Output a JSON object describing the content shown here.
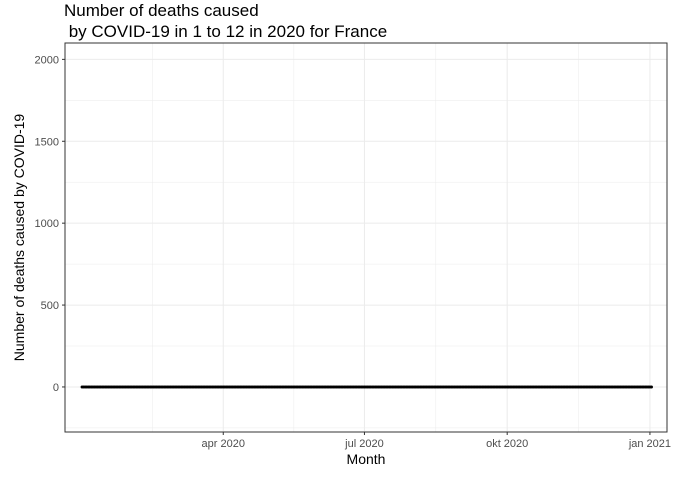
{
  "chart_data": {
    "type": "line",
    "title_lines": [
      "Number of deaths caused",
      " by COVID-19 in 1 to 12 in 2020 for France"
    ],
    "xlabel": "Month",
    "ylabel": "Number of deaths caused by COVID-19",
    "x_ticks": [
      {
        "date": "2020-04-01",
        "label": "apr 2020"
      },
      {
        "date": "2020-07-01",
        "label": "jul 2020"
      },
      {
        "date": "2020-10-01",
        "label": "okt 2020"
      },
      {
        "date": "2021-01-01",
        "label": "jan 2021"
      }
    ],
    "y_ticks": [
      0,
      500,
      1000,
      1500,
      2000
    ],
    "xlim": [
      "2019-12-21",
      "2021-01-12"
    ],
    "ylim": [
      -275,
      2100
    ],
    "grid": true,
    "colors": {
      "line": "#ff0000",
      "point": "#000000",
      "panel_border": "#333333",
      "grid": "#ebebeb"
    },
    "series": [
      {
        "x": [
          "2020-01-01",
          "2020-01-02",
          "2020-01-03",
          "2020-01-04",
          "2020-01-05",
          "2020-01-06",
          "2020-01-07",
          "2020-01-08",
          "2020-01-09",
          "2020-01-10",
          "2020-01-11",
          "2020-01-12",
          "2020-01-13",
          "2020-01-14",
          "2020-01-15",
          "2020-01-16",
          "2020-01-17",
          "2020-01-18",
          "2020-01-19",
          "2020-01-20",
          "2020-01-21",
          "2020-01-22",
          "2020-01-23",
          "2020-01-24",
          "2020-01-25",
          "2020-01-26",
          "2020-01-27",
          "2020-01-28",
          "2020-01-29",
          "2020-01-30",
          "2020-01-31",
          "2020-02-01",
          "2020-02-02",
          "2020-02-03",
          "2020-02-04",
          "2020-02-05",
          "2020-02-06",
          "2020-02-07",
          "2020-02-08",
          "2020-02-09",
          "2020-02-10",
          "2020-02-11",
          "2020-02-12",
          "2020-02-13",
          "2020-02-14",
          "2020-02-15",
          "2020-02-16",
          "2020-02-17",
          "2020-02-18",
          "2020-02-19",
          "2020-02-20",
          "2020-02-21",
          "2020-02-22",
          "2020-02-23",
          "2020-02-24",
          "2020-02-25",
          "2020-02-26",
          "2020-02-27",
          "2020-02-28",
          "2020-02-29",
          "2020-03-01",
          "2020-03-02",
          "2020-03-03",
          "2020-03-04",
          "2020-03-05",
          "2020-03-06",
          "2020-03-07",
          "2020-03-08",
          "2020-03-09",
          "2020-03-10",
          "2020-03-11",
          "2020-03-12",
          "2020-03-13",
          "2020-03-14",
          "2020-03-15",
          "2020-03-16",
          "2020-03-17",
          "2020-03-18",
          "2020-03-19",
          "2020-03-20",
          "2020-03-21",
          "2020-03-22",
          "2020-03-23",
          "2020-03-24",
          "2020-03-25",
          "2020-03-26",
          "2020-03-27",
          "2020-03-28",
          "2020-03-29",
          "2020-03-30",
          "2020-03-31",
          "2020-04-01",
          "2020-04-02",
          "2020-04-03",
          "2020-04-04",
          "2020-04-05",
          "2020-04-06",
          "2020-04-07",
          "2020-04-08",
          "2020-04-09",
          "2020-04-10",
          "2020-04-11",
          "2020-04-12",
          "2020-04-13",
          "2020-04-14",
          "2020-04-15",
          "2020-04-16",
          "2020-04-17",
          "2020-04-18",
          "2020-04-19",
          "2020-04-20",
          "2020-04-21",
          "2020-04-22",
          "2020-04-23",
          "2020-04-24",
          "2020-04-25",
          "2020-04-26",
          "2020-04-27",
          "2020-04-28",
          "2020-04-29",
          "2020-04-30",
          "2020-05-01",
          "2020-05-02",
          "2020-05-03",
          "2020-05-04",
          "2020-05-05",
          "2020-05-06",
          "2020-05-07",
          "2020-05-08",
          "2020-05-09",
          "2020-05-10",
          "2020-05-11",
          "2020-05-12",
          "2020-05-13",
          "2020-05-14",
          "2020-05-15",
          "2020-05-16",
          "2020-05-17",
          "2020-05-18",
          "2020-05-19",
          "2020-05-20",
          "2020-05-21",
          "2020-05-22",
          "2020-05-23",
          "2020-05-24",
          "2020-05-25",
          "2020-05-26",
          "2020-05-27",
          "2020-05-28",
          "2020-05-29",
          "2020-05-30",
          "2020-05-31",
          "2020-06-01",
          "2020-06-02",
          "2020-06-03",
          "2020-06-04",
          "2020-06-05",
          "2020-06-06",
          "2020-06-07",
          "2020-06-08",
          "2020-06-09",
          "2020-06-10",
          "2020-06-11",
          "2020-06-12",
          "2020-06-13",
          "2020-06-14",
          "2020-06-15",
          "2020-06-16",
          "2020-06-17",
          "2020-06-18",
          "2020-06-19",
          "2020-06-20",
          "2020-06-21",
          "2020-06-22",
          "2020-06-23",
          "2020-06-24",
          "2020-06-25",
          "2020-06-26",
          "2020-06-27",
          "2020-06-28",
          "2020-06-29",
          "2020-06-30",
          "2020-07-01",
          "2020-07-02",
          "2020-07-03",
          "2020-07-04",
          "2020-07-05",
          "2020-07-06",
          "2020-07-07",
          "2020-07-08",
          "2020-07-09",
          "2020-07-10",
          "2020-07-11",
          "2020-07-12",
          "2020-07-13",
          "2020-07-14",
          "2020-07-15",
          "2020-07-16",
          "2020-07-17",
          "2020-07-18",
          "2020-07-19",
          "2020-07-20",
          "2020-07-21",
          "2020-07-22",
          "2020-07-23",
          "2020-07-24",
          "2020-07-25",
          "2020-07-26",
          "2020-07-27",
          "2020-07-28",
          "2020-07-29",
          "2020-07-30",
          "2020-07-31",
          "2020-08-01",
          "2020-08-02",
          "2020-08-03",
          "2020-08-04",
          "2020-08-05",
          "2020-08-06",
          "2020-08-07",
          "2020-08-08",
          "2020-08-09",
          "2020-08-10",
          "2020-08-11",
          "2020-08-12",
          "2020-08-13",
          "2020-08-14",
          "2020-08-15",
          "2020-08-16",
          "2020-08-17",
          "2020-08-18",
          "2020-08-19",
          "2020-08-20",
          "2020-08-21",
          "2020-08-22",
          "2020-08-23",
          "2020-08-24",
          "2020-08-25",
          "2020-08-26",
          "2020-08-27",
          "2020-08-28",
          "2020-08-29",
          "2020-08-30",
          "2020-08-31",
          "2020-09-01",
          "2020-09-02",
          "2020-09-03",
          "2020-09-04",
          "2020-09-05",
          "2020-09-06",
          "2020-09-07",
          "2020-09-08",
          "2020-09-09",
          "2020-09-10",
          "2020-09-11",
          "2020-09-12",
          "2020-09-13",
          "2020-09-14",
          "2020-09-15",
          "2020-09-16",
          "2020-09-17",
          "2020-09-18",
          "2020-09-19",
          "2020-09-20",
          "2020-09-21",
          "2020-09-22",
          "2020-09-23",
          "2020-09-24",
          "2020-09-25",
          "2020-09-26",
          "2020-09-27",
          "2020-09-28",
          "2020-09-29",
          "2020-09-30",
          "2020-10-01",
          "2020-10-02",
          "2020-10-03",
          "2020-10-04",
          "2020-10-05",
          "2020-10-06",
          "2020-10-07",
          "2020-10-08",
          "2020-10-09",
          "2020-10-10",
          "2020-10-11",
          "2020-10-12",
          "2020-10-13",
          "2020-10-14",
          "2020-10-15",
          "2020-10-16",
          "2020-10-17",
          "2020-10-18",
          "2020-10-19",
          "2020-10-20",
          "2020-10-21",
          "2020-10-22",
          "2020-10-23",
          "2020-10-24",
          "2020-10-25",
          "2020-10-26",
          "2020-10-27",
          "2020-10-28",
          "2020-10-29",
          "2020-10-30",
          "2020-10-31",
          "2020-11-01",
          "2020-11-02",
          "2020-11-03",
          "2020-11-04",
          "2020-11-05",
          "2020-11-06",
          "2020-11-07",
          "2020-11-08",
          "2020-11-09",
          "2020-11-10",
          "2020-11-11",
          "2020-11-12",
          "2020-11-13",
          "2020-11-14",
          "2020-11-15",
          "2020-11-16",
          "2020-11-17",
          "2020-11-18",
          "2020-11-19",
          "2020-11-20",
          "2020-11-21",
          "2020-11-22",
          "2020-11-23",
          "2020-11-24",
          "2020-11-25",
          "2020-11-26",
          "2020-11-27",
          "2020-11-28",
          "2020-11-29",
          "2020-11-30",
          "2020-12-01",
          "2020-12-02",
          "2020-12-03",
          "2020-12-04",
          "2020-12-05",
          "2020-12-06",
          "2020-12-07",
          "2020-12-08",
          "2020-12-09",
          "2020-12-10",
          "2020-12-11",
          "2020-12-12",
          "2020-12-13",
          "2020-12-14",
          "2020-12-15",
          "2020-12-16",
          "2020-12-17",
          "2020-12-18",
          "2020-12-19",
          "2020-12-20",
          "2020-12-21",
          "2020-12-22",
          "2020-12-23",
          "2020-12-24",
          "2020-12-25",
          "2020-12-26",
          "2020-12-27",
          "2020-12-28",
          "2020-12-29",
          "2020-12-30",
          "2020-12-31",
          "2021-01-01",
          "2021-01-02"
        ],
        "y": [
          0,
          0,
          0,
          0,
          0,
          0,
          0,
          0,
          0,
          0,
          0,
          0,
          0,
          0,
          0,
          0,
          0,
          0,
          0,
          0,
          0,
          0,
          0,
          0,
          0,
          0,
          0,
          0,
          0,
          0,
          0,
          0,
          0,
          0,
          0,
          0,
          0,
          0,
          0,
          0,
          0,
          0,
          0,
          0,
          0,
          0,
          0,
          0,
          0,
          0,
          0,
          0,
          0,
          0,
          0,
          0,
          0,
          0,
          0,
          0,
          0,
          0,
          0,
          0,
          0,
          0,
          0,
          0,
          0,
          0,
          0,
          0,
          0,
          0,
          0,
          0,
          0,
          0,
          0,
          0,
          0,
          0,
          0,
          0,
          0,
          0,
          0,
          0,
          0,
          0,
          0,
          0,
          0,
          0,
          0,
          0,
          0,
          0,
          0,
          0,
          0,
          0,
          0,
          0,
          0,
          0,
          0,
          0,
          0,
          0,
          0,
          0,
          0,
          0,
          0,
          0,
          0,
          0,
          0,
          0,
          0,
          0,
          0,
          0,
          0,
          0,
          0,
          0,
          0,
          0,
          0,
          0,
          0,
          0,
          0,
          0,
          0,
          0,
          0,
          0,
          0,
          0,
          0,
          0,
          0,
          0,
          0,
          0,
          0,
          0,
          0,
          0,
          0,
          0,
          0,
          0,
          0,
          0,
          0,
          0,
          0,
          0,
          0,
          0,
          0,
          0,
          0,
          0,
          0,
          0,
          0,
          0,
          0,
          0,
          0,
          0,
          0,
          0,
          0,
          0,
          0,
          0,
          0,
          0,
          0,
          0,
          0,
          0,
          0,
          0,
          0,
          0,
          0,
          0,
          0,
          0,
          0,
          0,
          0,
          0,
          0,
          0,
          0,
          0,
          0,
          0,
          0,
          0,
          0,
          0,
          0,
          0,
          0,
          0,
          0,
          0,
          0,
          0,
          0,
          0,
          0,
          0,
          0,
          0,
          0,
          0,
          0,
          0,
          0,
          0,
          0,
          0,
          0,
          0,
          0,
          0,
          0,
          0,
          0,
          0,
          0,
          0,
          0,
          0,
          0,
          0,
          0,
          0,
          0,
          0,
          0,
          0,
          0,
          0,
          0,
          0,
          0,
          0,
          0,
          0,
          0,
          0,
          0,
          0,
          0,
          0,
          0,
          0,
          0,
          0,
          0,
          0,
          0,
          0,
          0,
          0,
          0,
          0,
          0,
          0,
          0,
          0,
          0,
          0,
          0,
          0,
          0,
          0,
          0,
          0,
          0,
          0,
          0,
          0,
          0,
          0,
          0,
          0,
          0,
          0,
          0,
          0,
          0,
          0,
          0,
          0,
          0,
          0,
          0,
          0,
          0,
          0,
          0,
          0,
          0,
          0,
          0,
          0,
          0,
          0,
          0,
          0,
          0,
          0,
          0,
          0,
          0,
          0,
          0,
          0,
          0,
          0,
          0,
          0,
          0,
          0,
          0,
          0,
          0,
          0,
          0,
          0,
          0,
          0,
          0,
          0,
          0,
          0,
          0,
          0,
          0,
          0,
          0,
          0,
          0,
          0,
          0,
          0,
          0,
          0,
          0,
          0,
          0,
          0,
          0,
          0,
          0,
          0
        ]
      }
    ]
  }
}
